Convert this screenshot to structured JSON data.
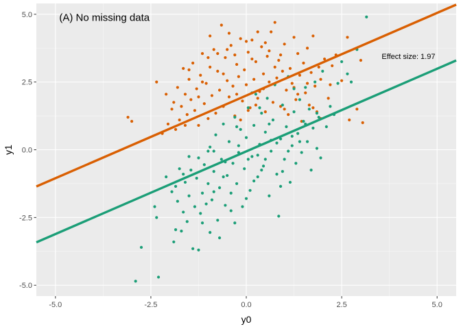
{
  "chart_data": {
    "type": "scatter",
    "title": "",
    "xlabel": "y0",
    "ylabel": "y1",
    "xlim": [
      -5.5,
      5.5
    ],
    "ylim": [
      -5.4,
      5.4
    ],
    "x_ticks": [
      -5.0,
      -2.5,
      0.0,
      2.5,
      5.0
    ],
    "x_tick_labels": [
      "-5.0",
      "-2.5",
      "0.0",
      "2.5",
      "5.0"
    ],
    "y_ticks": [
      -5.0,
      -2.5,
      0.0,
      2.5,
      5.0
    ],
    "y_tick_labels": [
      "-5.0",
      "-2.5",
      "0.0",
      "2.5",
      "5.0"
    ],
    "grid": true,
    "legend": "none",
    "annotations": [
      {
        "role": "panel-title",
        "text": "(A) No missing data",
        "x": -4.9,
        "y": 4.75
      },
      {
        "role": "effect-size",
        "text": "Effect size: 1.97",
        "x": 4.25,
        "y": 3.35
      }
    ],
    "series": [
      {
        "color": "#D95F02",
        "line": {
          "intercept": 2.0,
          "slope": 0.61
        },
        "points": [
          [
            -3.1,
            1.2
          ],
          [
            -3.0,
            1.05
          ],
          [
            -2.35,
            2.5
          ],
          [
            -2.2,
            0.6
          ],
          [
            -2.05,
            0.95
          ],
          [
            -1.95,
            1.5
          ],
          [
            -1.9,
            1.75
          ],
          [
            -1.8,
            2.3
          ],
          [
            -1.75,
            1.1
          ],
          [
            -1.7,
            1.6
          ],
          [
            -1.65,
            3.0
          ],
          [
            -1.6,
            2.05
          ],
          [
            -1.55,
            1.3
          ],
          [
            -1.5,
            2.6
          ],
          [
            -1.45,
            1.85
          ],
          [
            -1.4,
            3.2
          ],
          [
            -1.35,
            1.45
          ],
          [
            -1.3,
            2.25
          ],
          [
            -1.25,
            0.9
          ],
          [
            -1.2,
            2.75
          ],
          [
            -1.15,
            3.55
          ],
          [
            -1.1,
            1.7
          ],
          [
            -1.05,
            2.45
          ],
          [
            -1.0,
            1.15
          ],
          [
            -0.95,
            3.05
          ],
          [
            -0.9,
            2.0
          ],
          [
            -0.85,
            3.7
          ],
          [
            -0.8,
            1.35
          ],
          [
            -0.75,
            2.9
          ],
          [
            -0.7,
            2.2
          ],
          [
            -0.65,
            4.6
          ],
          [
            -0.6,
            1.6
          ],
          [
            -0.55,
            3.4
          ],
          [
            -0.5,
            2.55
          ],
          [
            -0.45,
            1.95
          ],
          [
            -0.4,
            3.85
          ],
          [
            -0.35,
            2.35
          ],
          [
            -0.3,
            1.25
          ],
          [
            -0.25,
            3.15
          ],
          [
            -0.2,
            2.7
          ],
          [
            -0.15,
            4.1
          ],
          [
            -0.1,
            1.8
          ],
          [
            -0.05,
            2.95
          ],
          [
            0.0,
            2.4
          ],
          [
            0.05,
            3.6
          ],
          [
            0.1,
            1.55
          ],
          [
            0.15,
            4.05
          ],
          [
            0.2,
            2.6
          ],
          [
            0.25,
            3.25
          ],
          [
            0.3,
            1.9
          ],
          [
            0.35,
            2.15
          ],
          [
            0.4,
            3.8
          ],
          [
            0.45,
            2.8
          ],
          [
            0.5,
            1.4
          ],
          [
            0.55,
            3.45
          ],
          [
            0.6,
            2.5
          ],
          [
            0.65,
            4.35
          ],
          [
            0.7,
            1.75
          ],
          [
            0.75,
            4.7
          ],
          [
            0.8,
            2.65
          ],
          [
            0.85,
            3.3
          ],
          [
            0.9,
            1.6
          ],
          [
            0.95,
            2.9
          ],
          [
            1.0,
            3.9
          ],
          [
            1.05,
            2.2
          ],
          [
            1.1,
            1.3
          ],
          [
            1.15,
            3.0
          ],
          [
            1.2,
            2.45
          ],
          [
            1.25,
            4.15
          ],
          [
            1.3,
            1.85
          ],
          [
            1.35,
            3.55
          ],
          [
            1.4,
            2.75
          ],
          [
            1.45,
            1.05
          ],
          [
            1.5,
            3.2
          ],
          [
            1.55,
            2.1
          ],
          [
            1.6,
            3.75
          ],
          [
            1.65,
            1.65
          ],
          [
            1.7,
            2.85
          ],
          [
            1.75,
            4.2
          ],
          [
            1.8,
            2.35
          ],
          [
            1.85,
            1.4
          ],
          [
            1.9,
            3.05
          ],
          [
            1.95,
            2.6
          ],
          [
            2.05,
            3.35
          ],
          [
            2.15,
            1.9
          ],
          [
            2.2,
            2.4
          ],
          [
            2.35,
            3.5
          ],
          [
            2.5,
            2.55
          ],
          [
            2.65,
            4.15
          ],
          [
            2.7,
            1.1
          ],
          [
            2.9,
            1.5
          ],
          [
            3.0,
            3.3
          ],
          [
            3.05,
            1.0
          ],
          [
            -1.5,
            2.95
          ],
          [
            -1.0,
            3.4
          ],
          [
            -0.5,
            3.7
          ],
          [
            0.0,
            4.0
          ],
          [
            0.5,
            3.95
          ],
          [
            1.0,
            1.5
          ],
          [
            -1.25,
            1.95
          ],
          [
            -0.75,
            3.55
          ],
          [
            -0.25,
            2.05
          ],
          [
            0.25,
            1.65
          ],
          [
            0.75,
            3.05
          ],
          [
            1.25,
            2.3
          ],
          [
            1.75,
            1.55
          ],
          [
            -2.1,
            2.05
          ],
          [
            -1.85,
            0.75
          ],
          [
            -0.95,
            4.2
          ],
          [
            0.3,
            4.35
          ],
          [
            0.6,
            3.65
          ],
          [
            -0.3,
            3.5
          ],
          [
            0.15,
            3.35
          ],
          [
            -0.6,
            2.8
          ],
          [
            0.9,
            3.5
          ],
          [
            1.35,
            2.05
          ],
          [
            -1.15,
            2.5
          ],
          [
            0.45,
            2.25
          ],
          [
            -0.45,
            4.3
          ],
          [
            1.6,
            2.45
          ],
          [
            2.25,
            3.1
          ],
          [
            1.95,
            1.15
          ],
          [
            -1.6,
            0.9
          ],
          [
            0.05,
            1.45
          ],
          [
            -0.15,
            1.1
          ]
        ]
      },
      {
        "color": "#1B9E77",
        "line": {
          "intercept": -0.06,
          "slope": 0.61
        },
        "points": [
          [
            -2.9,
            -4.85
          ],
          [
            -2.3,
            -4.7
          ],
          [
            -2.75,
            -3.6
          ],
          [
            -2.35,
            -2.5
          ],
          [
            -2.4,
            -2.1
          ],
          [
            -1.9,
            -3.4
          ],
          [
            -1.85,
            -2.95
          ],
          [
            -1.8,
            -1.9
          ],
          [
            -1.7,
            -3.0
          ],
          [
            -1.65,
            -2.3
          ],
          [
            -1.6,
            -1.2
          ],
          [
            -1.55,
            -2.65
          ],
          [
            -1.5,
            -1.7
          ],
          [
            -1.45,
            -0.75
          ],
          [
            -1.4,
            -3.65
          ],
          [
            -1.35,
            -2.1
          ],
          [
            -1.3,
            -1.05
          ],
          [
            -1.25,
            -0.3
          ],
          [
            -1.2,
            -2.35
          ],
          [
            -1.15,
            -1.6
          ],
          [
            -1.1,
            -0.55
          ],
          [
            -1.05,
            -2.0
          ],
          [
            -1.0,
            -1.25
          ],
          [
            -0.95,
            0.1
          ],
          [
            -0.9,
            -1.85
          ],
          [
            -0.85,
            -0.8
          ],
          [
            -0.8,
            0.55
          ],
          [
            -0.75,
            -2.6
          ],
          [
            -0.7,
            -1.4
          ],
          [
            -0.65,
            -0.35
          ],
          [
            -0.6,
            0.95
          ],
          [
            -0.55,
            -2.05
          ],
          [
            -0.5,
            -0.95
          ],
          [
            -0.45,
            0.3
          ],
          [
            -0.4,
            -1.6
          ],
          [
            -0.35,
            -0.5
          ],
          [
            -0.3,
            1.2
          ],
          [
            -0.25,
            -1.25
          ],
          [
            -0.2,
            -0.1
          ],
          [
            -0.15,
            0.75
          ],
          [
            -0.1,
            -2.1
          ],
          [
            -0.05,
            -0.7
          ],
          [
            0.0,
            0.45
          ],
          [
            0.05,
            1.55
          ],
          [
            0.1,
            -1.5
          ],
          [
            0.15,
            -0.25
          ],
          [
            0.2,
            0.9
          ],
          [
            0.25,
            2.05
          ],
          [
            0.3,
            -1.0
          ],
          [
            0.35,
            0.2
          ],
          [
            0.4,
            1.35
          ],
          [
            0.45,
            -0.6
          ],
          [
            0.5,
            0.65
          ],
          [
            0.55,
            1.9
          ],
          [
            0.6,
            -1.7
          ],
          [
            0.65,
            -0.05
          ],
          [
            0.7,
            1.1
          ],
          [
            0.75,
            2.4
          ],
          [
            0.8,
            -0.9
          ],
          [
            0.85,
            -2.45
          ],
          [
            0.9,
            0.4
          ],
          [
            0.95,
            1.65
          ],
          [
            1.0,
            -0.35
          ],
          [
            1.05,
            0.85
          ],
          [
            1.1,
            2.7
          ],
          [
            1.15,
            -1.2
          ],
          [
            1.2,
            0.15
          ],
          [
            1.25,
            1.4
          ],
          [
            1.3,
            -0.5
          ],
          [
            1.35,
            0.6
          ],
          [
            1.4,
            1.85
          ],
          [
            1.45,
            -0.1
          ],
          [
            1.5,
            1.05
          ],
          [
            1.55,
            2.3
          ],
          [
            1.6,
            0.3
          ],
          [
            1.65,
            1.5
          ],
          [
            1.7,
            -0.75
          ],
          [
            1.75,
            0.8
          ],
          [
            1.8,
            2.5
          ],
          [
            1.85,
            0.05
          ],
          [
            1.9,
            1.2
          ],
          [
            1.95,
            -0.3
          ],
          [
            2.0,
            2.9
          ],
          [
            2.2,
            1.6
          ],
          [
            2.4,
            2.45
          ],
          [
            2.65,
            2.8
          ],
          [
            2.75,
            2.5
          ],
          [
            2.9,
            3.7
          ],
          [
            3.15,
            4.9
          ],
          [
            -1.95,
            -1.55
          ],
          [
            -1.75,
            -0.7
          ],
          [
            -1.25,
            -3.7
          ],
          [
            -0.95,
            -3.05
          ],
          [
            -0.6,
            -1.0
          ],
          [
            -0.3,
            -2.7
          ],
          [
            0.0,
            -1.8
          ],
          [
            0.3,
            -0.2
          ],
          [
            0.6,
            0.95
          ],
          [
            0.9,
            -1.35
          ],
          [
            1.2,
            0.5
          ],
          [
            -2.1,
            -1.0
          ],
          [
            -1.85,
            -1.35
          ],
          [
            -1.5,
            -0.25
          ],
          [
            -1.15,
            -2.7
          ],
          [
            -0.85,
            -0.05
          ],
          [
            -0.55,
            -0.45
          ],
          [
            -0.25,
            0.85
          ],
          [
            0.05,
            -0.35
          ],
          [
            0.35,
            1.55
          ],
          [
            0.65,
            0.35
          ],
          [
            0.95,
            -0.8
          ],
          [
            1.25,
            2.25
          ],
          [
            1.55,
            0.95
          ],
          [
            1.85,
            1.35
          ],
          [
            2.1,
            0.85
          ],
          [
            -0.7,
            -3.25
          ],
          [
            -0.4,
            -2.25
          ],
          [
            0.2,
            -1.15
          ],
          [
            0.5,
            -0.35
          ],
          [
            0.8,
            0.25
          ],
          [
            1.1,
            -0.05
          ],
          [
            1.4,
            0.3
          ],
          [
            -1.0,
            -0.05
          ],
          [
            -0.2,
            0.15
          ],
          [
            0.4,
            -0.75
          ],
          [
            -1.65,
            -0.9
          ],
          [
            2.3,
            1.3
          ],
          [
            2.5,
            3.25
          ],
          [
            -0.85,
            -1.55
          ],
          [
            0.15,
            2.1
          ]
        ]
      }
    ]
  }
}
